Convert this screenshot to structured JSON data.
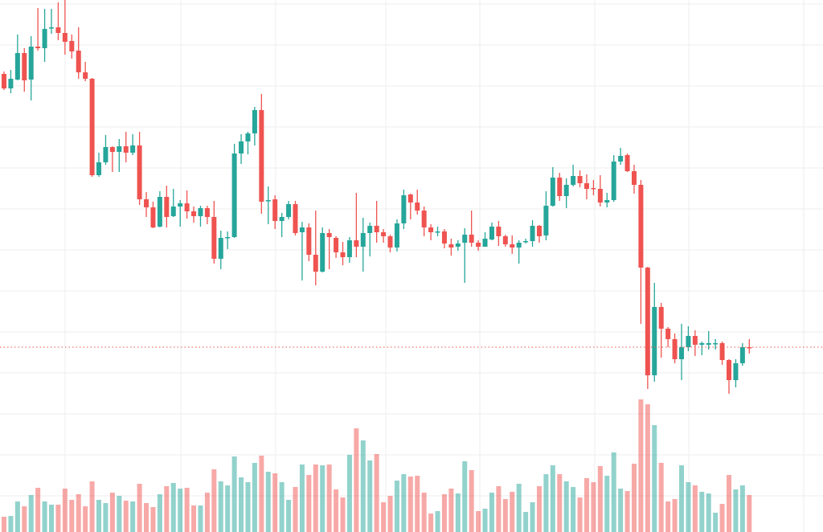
{
  "chart_data": {
    "type": "candlestick",
    "title": "",
    "xlabel": "",
    "ylabel": "",
    "grid": true,
    "price_range": [
      -15.5,
      150
    ],
    "volume_range": [
      0,
      165
    ],
    "last_price": 42,
    "colors": {
      "up": "#26a69a",
      "down": "#ef5350",
      "last_price_line": "#ef5350",
      "grid": "#ececec"
    },
    "ohlc_fields": [
      "open",
      "high",
      "low",
      "close"
    ],
    "candles": [
      [
        127,
        127.75,
        122,
        122.5
      ],
      [
        122.5,
        128.25,
        121,
        125.5
      ],
      [
        125.25,
        139.25,
        125,
        133.5
      ],
      [
        133.5,
        135,
        121.5,
        125
      ],
      [
        125.25,
        138.75,
        118.75,
        135.5
      ],
      [
        135.5,
        147.5,
        134.25,
        135
      ],
      [
        135,
        147.25,
        130.75,
        141
      ],
      [
        141.25,
        147.25,
        139.5,
        141.5
      ],
      [
        141.5,
        149.25,
        137.5,
        139.75
      ],
      [
        139.75,
        150,
        133,
        137
      ],
      [
        137.25,
        139.25,
        131.75,
        134
      ],
      [
        134.25,
        141.5,
        125.5,
        127.5
      ],
      [
        127.5,
        130.75,
        124.75,
        125.5
      ],
      [
        125.5,
        125.75,
        95,
        95.5
      ],
      [
        95.5,
        102.5,
        95,
        99.5
      ],
      [
        99.5,
        108,
        98.75,
        104.25
      ],
      [
        104.25,
        104.5,
        96.5,
        102.75
      ],
      [
        102.75,
        106.75,
        96.5,
        104.5
      ],
      [
        104.5,
        109,
        99.5,
        102.5
      ],
      [
        102.5,
        108.25,
        101.75,
        104.75
      ],
      [
        104.75,
        109,
        86.25,
        88
      ],
      [
        88,
        90.25,
        82.5,
        85.5
      ],
      [
        85.5,
        87.25,
        79,
        79.25
      ],
      [
        79.5,
        90.5,
        79.25,
        88.75
      ],
      [
        88.75,
        92.25,
        79.25,
        82.5
      ],
      [
        82.75,
        91.25,
        82.5,
        85.75
      ],
      [
        85.75,
        87.75,
        79.5,
        86.75
      ],
      [
        86.75,
        90.75,
        82,
        84.25
      ],
      [
        84.25,
        85.75,
        80.75,
        82.75
      ],
      [
        82.75,
        86,
        79.5,
        85.25
      ],
      [
        85.25,
        86,
        80.25,
        82.5
      ],
      [
        82.5,
        87.5,
        68,
        69.5
      ],
      [
        69.5,
        78.25,
        66.25,
        76
      ],
      [
        76,
        78,
        72.5,
        76.25
      ],
      [
        76.25,
        105.25,
        76,
        102.25
      ],
      [
        102.25,
        108.25,
        99,
        106
      ],
      [
        106,
        109,
        102,
        108.5
      ],
      [
        108.5,
        116.75,
        104.75,
        115.75
      ],
      [
        115.75,
        120.75,
        83.5,
        87.25
      ],
      [
        87.5,
        92,
        80.25,
        87.75
      ],
      [
        88,
        89.25,
        78.75,
        81.25
      ],
      [
        81.25,
        83.75,
        76.25,
        82.5
      ],
      [
        82.5,
        87.5,
        81.75,
        86.5
      ],
      [
        86.5,
        87.5,
        76.75,
        77.5
      ],
      [
        77.75,
        81,
        62.75,
        79.25
      ],
      [
        79.25,
        80.5,
        68.75,
        70.75
      ],
      [
        70.75,
        84.5,
        61.25,
        65.5
      ],
      [
        65.5,
        79.25,
        65.25,
        77.5
      ],
      [
        77.5,
        78.75,
        66.25,
        76.25
      ],
      [
        76,
        76.5,
        69.75,
        71.5
      ],
      [
        71.5,
        74.75,
        67.5,
        70
      ],
      [
        70,
        76.25,
        68.25,
        75.25
      ],
      [
        75.25,
        90,
        70,
        73.25
      ],
      [
        73.25,
        82.25,
        65.5,
        77.5
      ],
      [
        77.5,
        80.75,
        70.25,
        79.75
      ],
      [
        79.75,
        87.5,
        74.5,
        77.75
      ],
      [
        77.75,
        78.75,
        74.5,
        76.5
      ],
      [
        76.5,
        77,
        71.5,
        73
      ],
      [
        73,
        81.75,
        71.75,
        80.5
      ],
      [
        80.5,
        91,
        78.75,
        89.25
      ],
      [
        89.5,
        89.75,
        81.75,
        87
      ],
      [
        87,
        91,
        83.25,
        84.5
      ],
      [
        84.5,
        85.75,
        76.5,
        79.25
      ],
      [
        79.25,
        80.25,
        75.25,
        77.75
      ],
      [
        77.75,
        79.5,
        76.5,
        78
      ],
      [
        78,
        78.75,
        72.75,
        74.25
      ],
      [
        74,
        75.75,
        70.5,
        73
      ],
      [
        73.25,
        75.25,
        72,
        74.25
      ],
      [
        74.5,
        79,
        62,
        77
      ],
      [
        77,
        84.5,
        73.25,
        74.5
      ],
      [
        74.5,
        75.25,
        72,
        73.25
      ],
      [
        73.25,
        77.75,
        73.25,
        75.75
      ],
      [
        75.5,
        80.75,
        75.25,
        79.5
      ],
      [
        79.5,
        81.25,
        73.5,
        76.5
      ],
      [
        76.5,
        77,
        73.25,
        74
      ],
      [
        74,
        76.75,
        71,
        73
      ],
      [
        73,
        75.25,
        68,
        74.5
      ],
      [
        74.75,
        75.75,
        74.25,
        75
      ],
      [
        75,
        81.5,
        73.25,
        79.75
      ],
      [
        79.75,
        80,
        74.5,
        76.5
      ],
      [
        76.75,
        90.5,
        75.25,
        86
      ],
      [
        86,
        98,
        85.75,
        94.75
      ],
      [
        94.75,
        96.25,
        87.5,
        89
      ],
      [
        89,
        94.5,
        85.25,
        92.5
      ],
      [
        92.5,
        98.75,
        92,
        95.25
      ],
      [
        95.25,
        97,
        91.75,
        93
      ],
      [
        93,
        95.75,
        88,
        91.25
      ],
      [
        91.5,
        94,
        89.25,
        91.25
      ],
      [
        91.25,
        95.5,
        85.75,
        87
      ],
      [
        87,
        90,
        85.5,
        87.75
      ],
      [
        87.75,
        101.75,
        87.25,
        99.75
      ],
      [
        99.75,
        104,
        98.75,
        101.5
      ],
      [
        101.75,
        102.25,
        96.5,
        96.75
      ],
      [
        96.75,
        98.75,
        89.75,
        92.5
      ],
      [
        92.5,
        94,
        49.25,
        66.75
      ],
      [
        66.75,
        67,
        29,
        33.25
      ],
      [
        33.25,
        62,
        31.25,
        54.5
      ],
      [
        54.5,
        55.75,
        38.75,
        47.75
      ],
      [
        47.75,
        48.25,
        42,
        44.5
      ],
      [
        44.5,
        46.25,
        37,
        38.25
      ],
      [
        38.25,
        49.25,
        31.75,
        42
      ],
      [
        42,
        48.5,
        40.75,
        45.5
      ],
      [
        45.5,
        47.25,
        39.25,
        42.75
      ],
      [
        42.75,
        43.75,
        39.5,
        43.25
      ],
      [
        42.75,
        47,
        41.25,
        43.25
      ],
      [
        43,
        44.5,
        41.25,
        43.25
      ],
      [
        43.25,
        43.75,
        36.5,
        38
      ],
      [
        38,
        38.25,
        27.5,
        31.75
      ],
      [
        31.75,
        38.25,
        29.5,
        37
      ],
      [
        37,
        43.25,
        36.25,
        42
      ],
      [
        42,
        44.5,
        40,
        42
      ]
    ],
    "volumes": [
      19,
      20,
      38,
      32,
      46,
      55,
      38,
      34,
      34,
      54,
      40,
      47,
      32,
      63,
      40,
      36,
      49,
      45,
      39,
      38,
      60,
      36,
      31,
      47,
      57,
      61,
      54,
      55,
      33,
      33,
      49,
      78,
      63,
      58,
      94,
      68,
      62,
      86,
      95,
      75,
      73,
      62,
      40,
      56,
      84,
      71,
      84,
      83,
      84,
      53,
      43,
      96,
      129,
      114,
      89,
      97,
      37,
      45,
      64,
      72,
      69,
      70,
      49,
      23,
      26,
      47,
      54,
      48,
      88,
      77,
      26,
      29,
      49,
      57,
      41,
      50,
      60,
      25,
      37,
      57,
      72,
      83,
      72,
      63,
      56,
      43,
      67,
      62,
      82,
      70,
      99,
      54,
      51,
      85,
      165,
      159,
      133,
      86,
      38,
      41,
      83,
      62,
      58,
      50,
      48,
      24,
      35,
      71,
      53,
      58,
      46
    ]
  }
}
